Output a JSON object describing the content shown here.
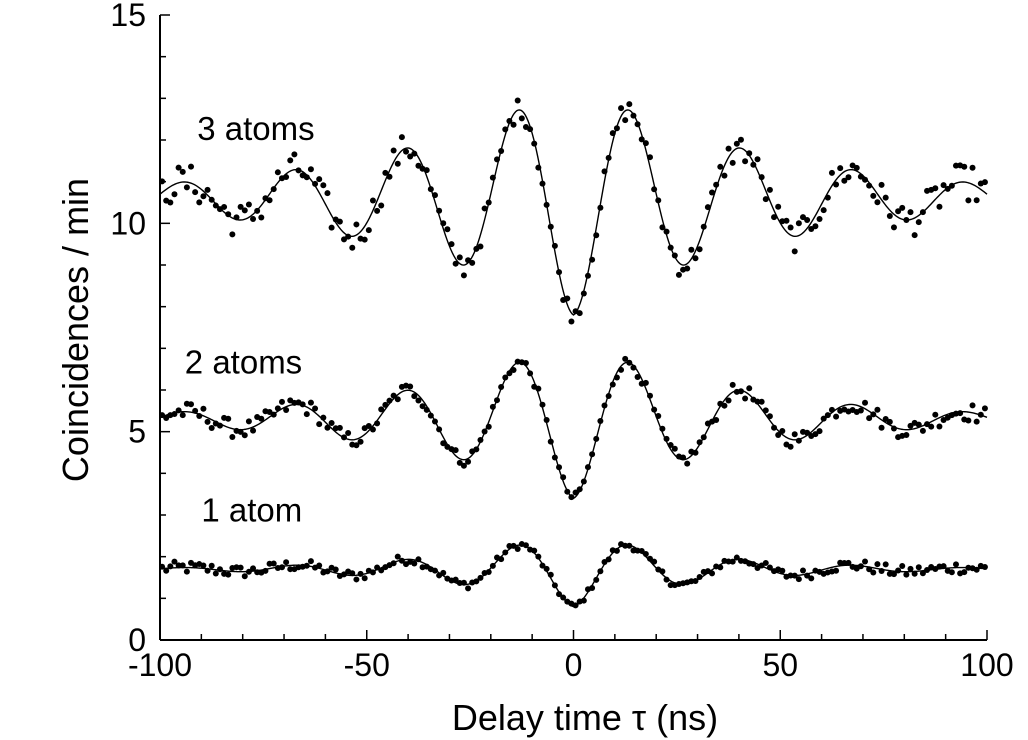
{
  "chart_data": {
    "type": "scatter",
    "xlabel": "Delay time  τ (ns)",
    "ylabel": "Coincidences / min",
    "xlim": [
      -100,
      100
    ],
    "ylim": [
      0,
      15
    ],
    "x_ticks": [
      -100,
      -50,
      0,
      50,
      100
    ],
    "y_ticks": [
      0,
      5,
      10,
      15
    ],
    "grid": false,
    "fit_line_color": "#000000",
    "point_color": "#000000",
    "period_ns": 27,
    "series": [
      {
        "name": "1 atom",
        "baseline": 1.7,
        "dip_depth": 0.9,
        "oscillation_amplitude": 0.9,
        "envelope_decay_ns": 30,
        "noise_amplitude": 0.12,
        "points": 200,
        "label_position": [
          -90,
          2.85
        ]
      },
      {
        "name": "2 atoms",
        "baseline": 5.3,
        "dip_depth": 1.9,
        "oscillation_amplitude": 1.9,
        "envelope_decay_ns": 40,
        "noise_amplitude": 0.18,
        "points": 200,
        "label_position": [
          -94,
          6.4
        ]
      },
      {
        "name": "3 atoms",
        "baseline": 10.6,
        "dip_depth": 2.8,
        "oscillation_amplitude": 2.8,
        "envelope_decay_ns": 48,
        "noise_amplitude": 0.35,
        "points": 200,
        "label_position": [
          -91,
          12.0
        ]
      }
    ]
  }
}
